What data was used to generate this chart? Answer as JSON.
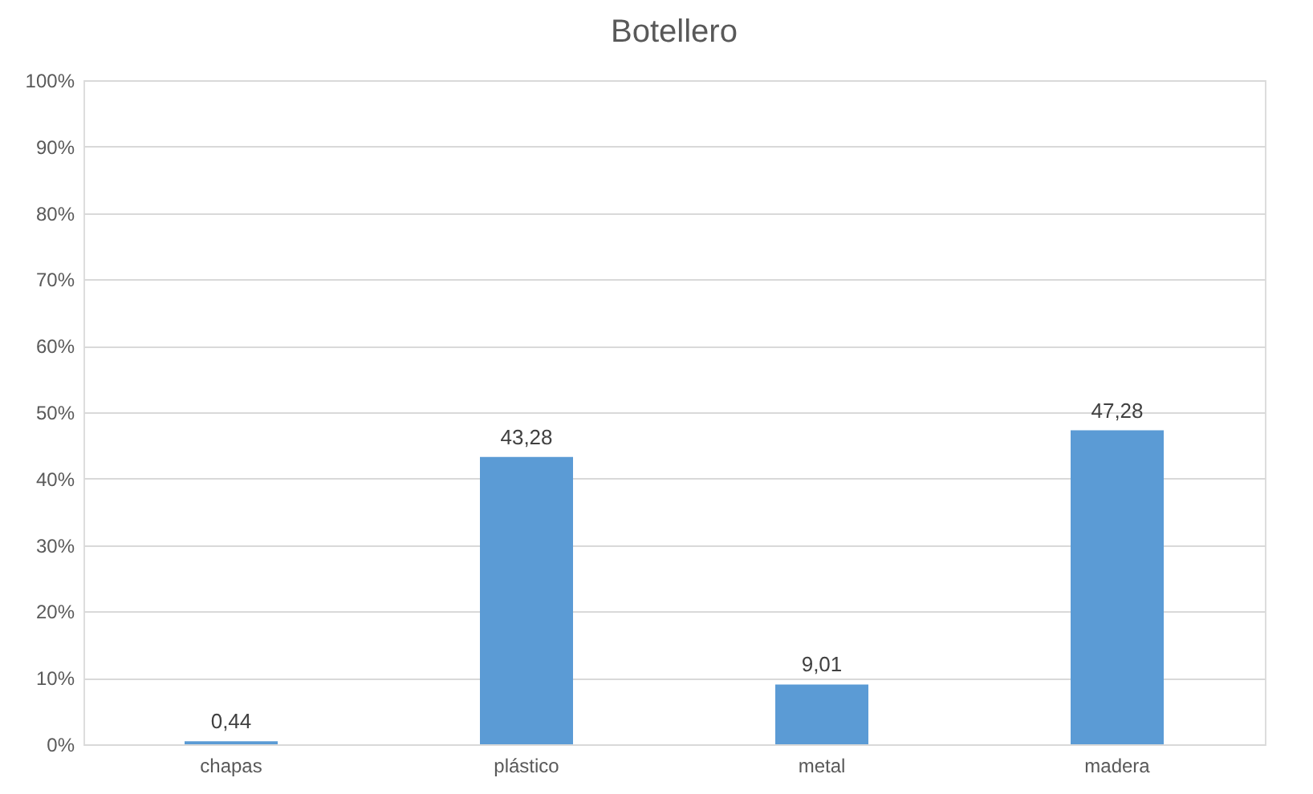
{
  "chart_data": {
    "type": "bar",
    "title": "Botellero",
    "categories": [
      "chapas",
      "plástico",
      "metal",
      "madera"
    ],
    "values": [
      0.44,
      43.28,
      9.01,
      47.28
    ],
    "value_labels": [
      "0,44",
      "43,28",
      "9,01",
      "47,28"
    ],
    "color": "#5b9bd5",
    "ylim": [
      0,
      100
    ],
    "yticks": [
      {
        "value": 0,
        "label": "0%"
      },
      {
        "value": 10,
        "label": "10%"
      },
      {
        "value": 20,
        "label": "20%"
      },
      {
        "value": 30,
        "label": "30%"
      },
      {
        "value": 40,
        "label": "40%"
      },
      {
        "value": 50,
        "label": "50%"
      },
      {
        "value": 60,
        "label": "60%"
      },
      {
        "value": 70,
        "label": "70%"
      },
      {
        "value": 80,
        "label": "80%"
      },
      {
        "value": 90,
        "label": "90%"
      },
      {
        "value": 100,
        "label": "100%"
      }
    ],
    "grid": "y"
  }
}
